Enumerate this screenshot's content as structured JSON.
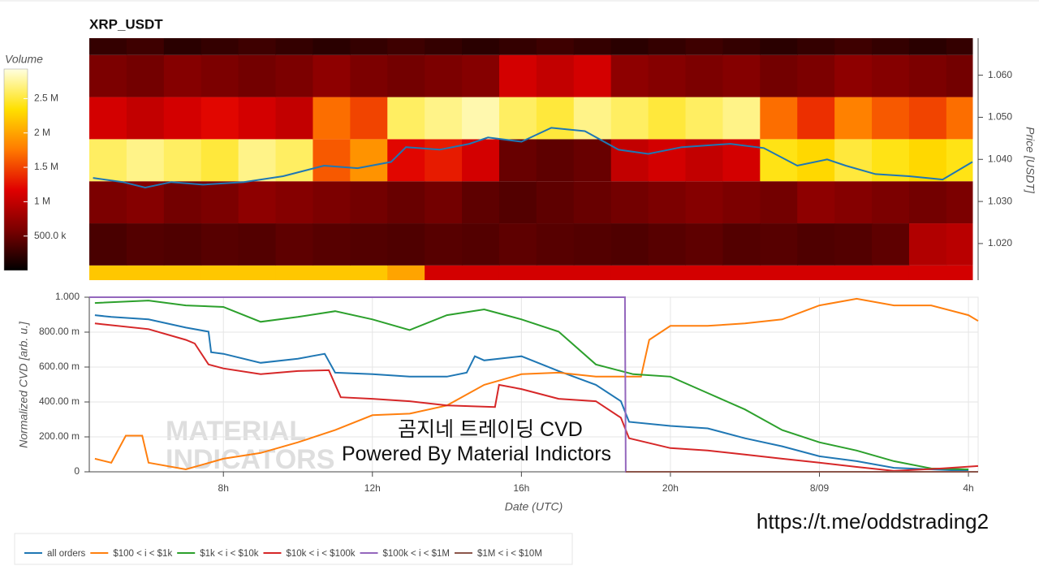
{
  "chart_data": [
    {
      "type": "heatmap",
      "title": "XRP_USDT",
      "ylabel": "Price [USDT]",
      "xlim": [
        4.4,
        28.1
      ],
      "ylim": [
        1.0113,
        1.0688
      ],
      "yticks": [
        {
          "value": 1.02,
          "label": "1.020"
        },
        {
          "value": 1.03,
          "label": "1.030"
        },
        {
          "value": 1.04,
          "label": "1.040"
        },
        {
          "value": 1.05,
          "label": "1.050"
        },
        {
          "value": 1.06,
          "label": "1.060"
        }
      ],
      "x_bins": [
        4.4,
        5.4,
        6.4,
        7.4,
        8.4,
        9.4,
        10.4,
        11.4,
        12.4,
        13.4,
        14.4,
        15.4,
        16.4,
        17.4,
        18.4,
        19.4,
        20.4,
        21.4,
        22.4,
        23.4,
        24.4,
        25.4,
        26.4,
        27.4,
        28.1
      ],
      "y_bins": [
        1.0113,
        1.0148,
        1.0248,
        1.0348,
        1.0448,
        1.0548,
        1.0648,
        1.0688
      ],
      "z": [
        [
          2200000,
          2200000,
          2200000,
          2200000,
          2200000,
          2200000,
          2200000,
          2200000,
          2000000,
          1100000,
          1100000,
          1100000,
          1100000,
          1100000,
          1100000,
          1100000,
          1100000,
          1100000,
          1100000,
          1100000,
          1100000,
          1100000,
          1100000,
          1100000
        ],
        [
          350000,
          400000,
          380000,
          420000,
          400000,
          450000,
          420000,
          400000,
          380000,
          420000,
          400000,
          450000,
          420000,
          400000,
          380000,
          420000,
          450000,
          400000,
          420000,
          380000,
          400000,
          450000,
          900000,
          950000
        ],
        [
          600000,
          650000,
          550000,
          600000,
          700000,
          650000,
          600000,
          550000,
          500000,
          550000,
          450000,
          400000,
          450000,
          500000,
          550000,
          600000,
          650000,
          600000,
          550000,
          700000,
          650000,
          600000,
          550000,
          600000
        ],
        [
          2600000,
          2700000,
          2600000,
          2500000,
          2700000,
          2600000,
          1600000,
          1900000,
          1200000,
          1300000,
          1100000,
          500000,
          450000,
          500000,
          1000000,
          1100000,
          1000000,
          1100000,
          2400000,
          2300000,
          2500000,
          2400000,
          2300000,
          2400000
        ],
        [
          1100000,
          1000000,
          1100000,
          1200000,
          1100000,
          1000000,
          1700000,
          1500000,
          2600000,
          2700000,
          2800000,
          2600000,
          2500000,
          2700000,
          2600000,
          2500000,
          2600000,
          2700000,
          1700000,
          1400000,
          1800000,
          1600000,
          1500000,
          1700000
        ],
        [
          600000,
          550000,
          650000,
          600000,
          550000,
          600000,
          700000,
          600000,
          550000,
          600000,
          650000,
          1100000,
          1000000,
          1100000,
          700000,
          650000,
          600000,
          650000,
          550000,
          600000,
          700000,
          650000,
          600000,
          550000
        ],
        [
          250000,
          300000,
          200000,
          250000,
          300000,
          250000,
          200000,
          250000,
          300000,
          250000,
          200000,
          250000,
          300000,
          250000,
          200000,
          250000,
          300000,
          250000,
          200000,
          250000,
          300000,
          250000,
          200000,
          250000
        ]
      ],
      "colormap": [
        "#000000",
        "#7a0000",
        "#e00000",
        "#ff7a00",
        "#ffe000",
        "#ffffe0"
      ],
      "colorbar": {
        "title": "Volume",
        "lim": [
          0,
          2930000
        ],
        "ticks": [
          {
            "value": 500000,
            "label": "500.0 k"
          },
          {
            "value": 1000000,
            "label": "1 M"
          },
          {
            "value": 1500000,
            "label": "1.5 M"
          },
          {
            "value": 2000000,
            "label": "2 M"
          },
          {
            "value": 2500000,
            "label": "2.5 M"
          }
        ]
      },
      "series": [
        {
          "color": "#1f77b4",
          "x": [
            4.5,
            5.3,
            5.9,
            6.6,
            7.45,
            8.55,
            9.6,
            10.7,
            11.6,
            12.5,
            12.9,
            13.8,
            14.6,
            15.1,
            16.0,
            16.8,
            17.7,
            18.6,
            19.4,
            20.3,
            21.6,
            22.5,
            23.4,
            24.2,
            24.7,
            25.5,
            26.4,
            27.3,
            28.1
          ],
          "values": [
            1.0356,
            1.0346,
            1.0333,
            1.0346,
            1.034,
            1.0346,
            1.036,
            1.0385,
            1.0379,
            1.0394,
            1.0429,
            1.0423,
            1.0437,
            1.0452,
            1.0442,
            1.0475,
            1.0467,
            1.0423,
            1.0413,
            1.0429,
            1.0437,
            1.0427,
            1.0385,
            1.04,
            1.0385,
            1.0365,
            1.036,
            1.0352,
            1.0394
          ]
        }
      ]
    },
    {
      "type": "line",
      "xlabel": "Date (UTC)",
      "ylabel": "Normalized CVD [arb. u.]",
      "xlim": [
        4.4,
        28.26
      ],
      "ylim": [
        0,
        1
      ],
      "xticks": [
        {
          "value": 8,
          "label": "8h"
        },
        {
          "value": 12,
          "label": "12h"
        },
        {
          "value": 16,
          "label": "16h"
        },
        {
          "value": 20,
          "label": "20h"
        },
        {
          "value": 24,
          "label": "8/09"
        },
        {
          "value": 28,
          "label": "4h"
        }
      ],
      "yticks": [
        0,
        {
          "value": 0.2,
          "label": "200.00 m"
        },
        {
          "value": 0.4,
          "label": "400.00 m"
        },
        {
          "value": 0.6,
          "label": "600.00 m"
        },
        {
          "value": 0.8,
          "label": "800.00 m"
        },
        {
          "value": 1,
          "label": "1.000"
        }
      ],
      "grid": true,
      "series": [
        {
          "name": "all orders",
          "color": "#1f77b4",
          "x": [
            4.55,
            4.99,
            5.99,
            6.99,
            7.6,
            7.67,
            8,
            9,
            10,
            10.72,
            11,
            12,
            13,
            14,
            14.53,
            14.75,
            15,
            16,
            17,
            18,
            18.67,
            18.89,
            20,
            21,
            22,
            23,
            24,
            25,
            26,
            27,
            28
          ],
          "values": [
            0.897,
            0.887,
            0.873,
            0.826,
            0.803,
            0.685,
            0.676,
            0.624,
            0.648,
            0.676,
            0.568,
            0.559,
            0.545,
            0.545,
            0.568,
            0.662,
            0.638,
            0.662,
            0.577,
            0.498,
            0.404,
            0.286,
            0.263,
            0.249,
            0.192,
            0.146,
            0.089,
            0.061,
            0.023,
            0.014,
            0.005
          ]
        },
        {
          "name": "$100 < i < $1k",
          "color": "#ff7f0e",
          "x": [
            4.55,
            4.99,
            5.38,
            5.82,
            5.99,
            6.99,
            8,
            9,
            10,
            11,
            12,
            13,
            14,
            15,
            16,
            17,
            18,
            18.78,
            19.21,
            19.43,
            20,
            21,
            22,
            23,
            24,
            25,
            26,
            27,
            28,
            28.26
          ],
          "values": [
            0.075,
            0.052,
            0.207,
            0.207,
            0.052,
            0.014,
            0.075,
            0.108,
            0.169,
            0.239,
            0.324,
            0.333,
            0.38,
            0.498,
            0.559,
            0.568,
            0.545,
            0.545,
            0.545,
            0.756,
            0.836,
            0.836,
            0.85,
            0.873,
            0.953,
            0.991,
            0.953,
            0.953,
            0.897,
            0.864
          ]
        },
        {
          "name": "$1k < i < $10k",
          "color": "#2ca02c",
          "x": [
            4.55,
            5.99,
            6.99,
            8,
            9,
            10,
            11,
            12,
            13,
            14,
            15,
            16,
            17,
            18,
            19,
            20,
            21,
            22,
            23,
            24,
            25,
            26,
            27,
            28
          ],
          "values": [
            0.967,
            0.981,
            0.953,
            0.944,
            0.859,
            0.887,
            0.92,
            0.873,
            0.812,
            0.897,
            0.93,
            0.873,
            0.803,
            0.615,
            0.559,
            0.545,
            0.451,
            0.357,
            0.239,
            0.169,
            0.122,
            0.061,
            0.019,
            0.014
          ]
        },
        {
          "name": "$10k < i < $100k",
          "color": "#d62728",
          "x": [
            4.55,
            5.99,
            6.99,
            7.23,
            7.6,
            8,
            9,
            10,
            10.83,
            11.15,
            12,
            13,
            14,
            15.29,
            15.4,
            16,
            17,
            18,
            18.67,
            18.89,
            20,
            21,
            22,
            23,
            24,
            25,
            26,
            27.28,
            28.26
          ],
          "values": [
            0.85,
            0.817,
            0.756,
            0.735,
            0.615,
            0.592,
            0.559,
            0.577,
            0.582,
            0.427,
            0.418,
            0.404,
            0.38,
            0.371,
            0.498,
            0.474,
            0.418,
            0.404,
            0.31,
            0.192,
            0.136,
            0.122,
            0.099,
            0.075,
            0.052,
            0.028,
            0.005,
            0.019,
            0.033
          ]
        },
        {
          "name": "$100k < i < $1M",
          "color": "#9467bd",
          "x": [
            4.4,
            18.78,
            18.8,
            28.26
          ],
          "values": [
            1,
            1,
            0,
            0
          ]
        },
        {
          "name": "$1M < i < $10M",
          "color": "#8c564b",
          "x": [
            18.8,
            28.26
          ],
          "values": [
            0,
            0
          ]
        }
      ]
    }
  ],
  "watermark": [
    "MATERIAL",
    "INDICATORS"
  ],
  "caption": [
    "곰지네 트레이딩 CVD",
    "Powered By Material Indictors"
  ],
  "link": "https://t.me/oddstrading2"
}
